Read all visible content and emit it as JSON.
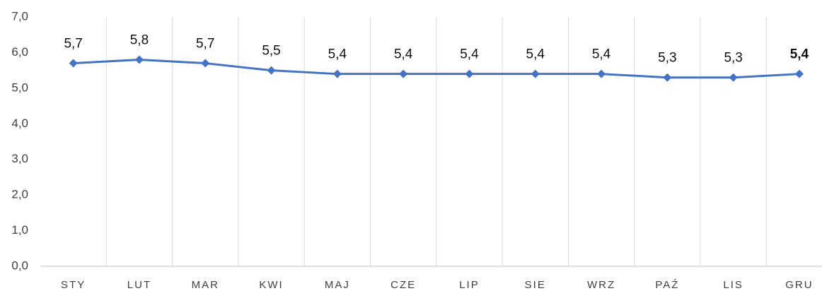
{
  "chart_data": {
    "type": "line",
    "categories": [
      "STY",
      "LUT",
      "MAR",
      "KWI",
      "MAJ",
      "CZE",
      "LIP",
      "SIE",
      "WRZ",
      "PAŹ",
      "LIS",
      "GRU"
    ],
    "series": [
      {
        "name": null,
        "color": "#4472c4",
        "values": [
          5.7,
          5.8,
          5.7,
          5.5,
          5.4,
          5.4,
          5.4,
          5.4,
          5.4,
          5.3,
          5.3,
          5.4
        ],
        "value_labels": [
          "5,7",
          "5,8",
          "5,7",
          "5,5",
          "5,4",
          "5,4",
          "5,4",
          "5,4",
          "5,4",
          "5,3",
          "5,3",
          "5,4"
        ]
      }
    ],
    "ylim": [
      0,
      7
    ],
    "yticks": [
      {
        "value": 0,
        "label": "0,0"
      },
      {
        "value": 1,
        "label": "1,0"
      },
      {
        "value": 2,
        "label": "2,0"
      },
      {
        "value": 3,
        "label": "3,0"
      },
      {
        "value": 4,
        "label": "4,0"
      },
      {
        "value": 5,
        "label": "5,0"
      },
      {
        "value": 6,
        "label": "6,0"
      },
      {
        "value": 7,
        "label": "7,0"
      }
    ],
    "grid": "vertical"
  }
}
